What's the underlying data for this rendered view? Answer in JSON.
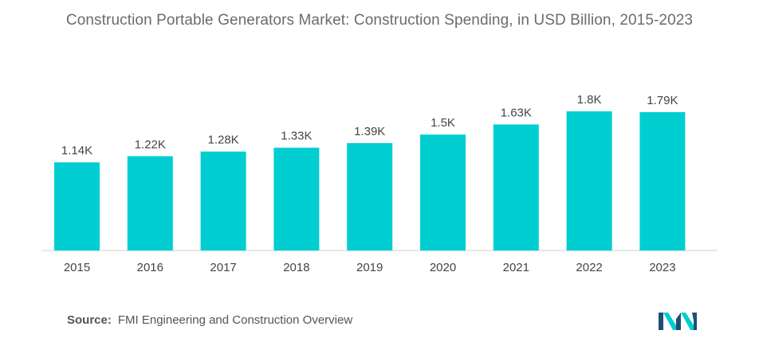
{
  "chart_data": {
    "type": "bar",
    "title": "Construction Portable Generators Market: Construction Spending, in USD Billion, 2015-2023",
    "categories": [
      "2015",
      "2016",
      "2017",
      "2018",
      "2019",
      "2020",
      "2021",
      "2022",
      "2023"
    ],
    "values": [
      1140,
      1220,
      1280,
      1330,
      1390,
      1500,
      1630,
      1800,
      1790
    ],
    "data_labels": [
      "1.14K",
      "1.22K",
      "1.28K",
      "1.33K",
      "1.39K",
      "1.5K",
      "1.63K",
      "1.8K",
      "1.79K"
    ],
    "xlabel": "",
    "ylabel": "",
    "ylim": [
      0,
      1800
    ],
    "grid": false,
    "legend": "none",
    "bar_color": "#00CED1",
    "axis_color": "#cfcfcf"
  },
  "source": {
    "label": "Source:",
    "text": "FMI Engineering and Construction Overview"
  },
  "logo": {
    "icon": "mordor-intelligence-logo",
    "colors": [
      "#1F4E79",
      "#00CED1"
    ]
  }
}
